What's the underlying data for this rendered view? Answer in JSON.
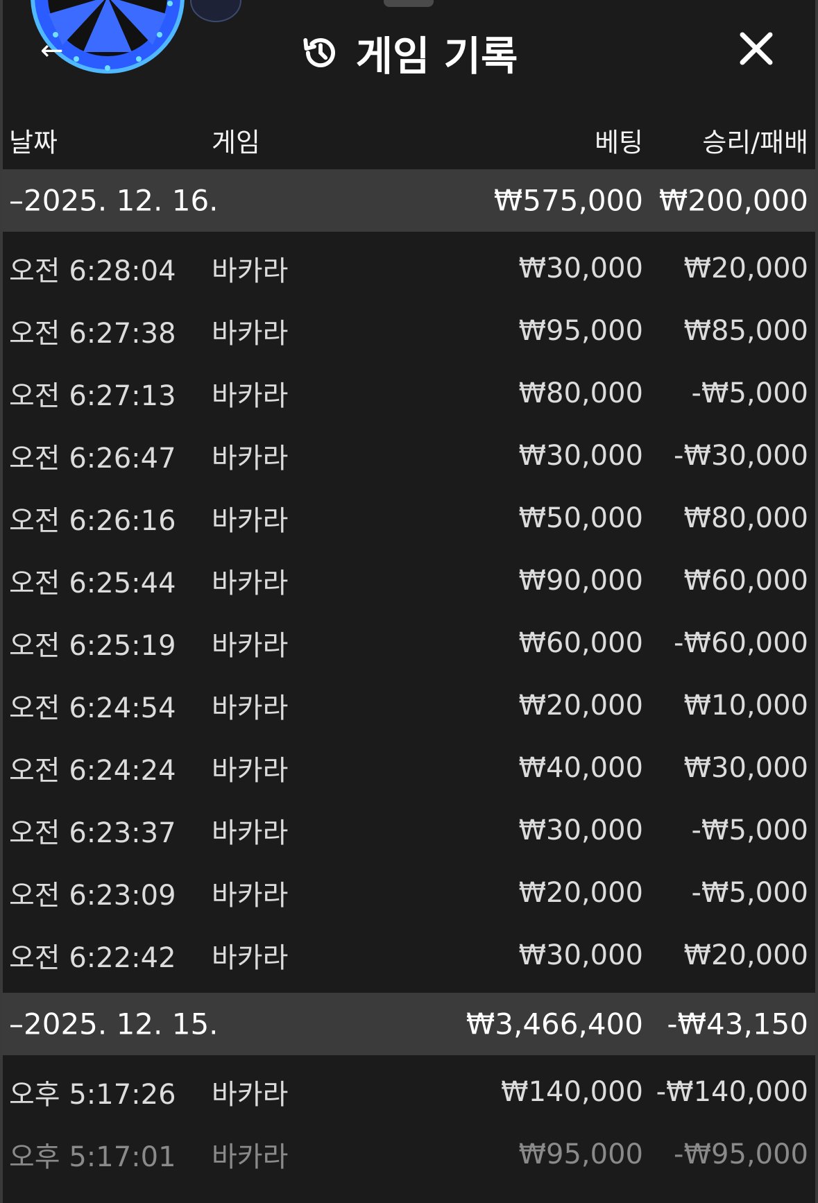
{
  "header": {
    "title": "게임 기록",
    "back_icon": "arrow-left-icon",
    "history_icon": "history-icon",
    "close_icon": "close-icon"
  },
  "columns": {
    "date": "날짜",
    "game": "게임",
    "bet": "베팅",
    "result": "승리/패배"
  },
  "groups": [
    {
      "date": "–2025. 12. 16.",
      "bet_total": "₩575,000",
      "result_total": "₩200,000",
      "rows": [
        {
          "time": "오전 6:28:04",
          "game": "바카라",
          "bet": "₩30,000",
          "result": "₩20,000"
        },
        {
          "time": "오전 6:27:38",
          "game": "바카라",
          "bet": "₩95,000",
          "result": "₩85,000"
        },
        {
          "time": "오전 6:27:13",
          "game": "바카라",
          "bet": "₩80,000",
          "result": "-₩5,000"
        },
        {
          "time": "오전 6:26:47",
          "game": "바카라",
          "bet": "₩30,000",
          "result": "-₩30,000"
        },
        {
          "time": "오전 6:26:16",
          "game": "바카라",
          "bet": "₩50,000",
          "result": "₩80,000"
        },
        {
          "time": "오전 6:25:44",
          "game": "바카라",
          "bet": "₩90,000",
          "result": "₩60,000"
        },
        {
          "time": "오전 6:25:19",
          "game": "바카라",
          "bet": "₩60,000",
          "result": "-₩60,000"
        },
        {
          "time": "오전 6:24:54",
          "game": "바카라",
          "bet": "₩20,000",
          "result": "₩10,000"
        },
        {
          "time": "오전 6:24:24",
          "game": "바카라",
          "bet": "₩40,000",
          "result": "₩30,000"
        },
        {
          "time": "오전 6:23:37",
          "game": "바카라",
          "bet": "₩30,000",
          "result": "-₩5,000"
        },
        {
          "time": "오전 6:23:09",
          "game": "바카라",
          "bet": "₩20,000",
          "result": "-₩5,000"
        },
        {
          "time": "오전 6:22:42",
          "game": "바카라",
          "bet": "₩30,000",
          "result": "₩20,000"
        }
      ]
    },
    {
      "date": "–2025. 12. 15.",
      "bet_total": "₩3,466,400",
      "result_total": "-₩43,150",
      "rows": [
        {
          "time": "오후 5:17:26",
          "game": "바카라",
          "bet": "₩140,000",
          "result": "-₩140,000"
        },
        {
          "time": "오후 5:17:01",
          "game": "바카라",
          "bet": "₩95,000",
          "result": "-₩95,000"
        }
      ]
    }
  ]
}
